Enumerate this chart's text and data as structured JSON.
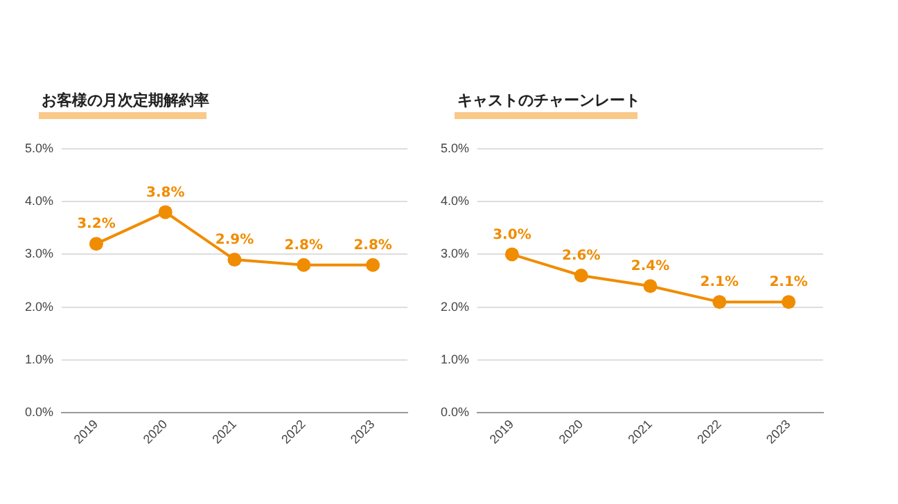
{
  "chart_data": [
    {
      "type": "line",
      "title": "お客様の月次定期解約率",
      "categories": [
        "2019",
        "2020",
        "2021",
        "2022",
        "2023"
      ],
      "series": [
        {
          "color": "#f08c00",
          "values": [
            3.2,
            3.8,
            2.9,
            2.8,
            2.8
          ],
          "value_labels": [
            "3.2%",
            "3.8%",
            "2.9%",
            "2.8%",
            "2.8%"
          ]
        }
      ],
      "ylim": [
        0,
        5
      ],
      "yticks": [
        {
          "value": 0,
          "label": "0.0%"
        },
        {
          "value": 1,
          "label": "1.0%"
        },
        {
          "value": 2,
          "label": "2.0%"
        },
        {
          "value": 3,
          "label": "3.0%"
        },
        {
          "value": 4,
          "label": "4.0%"
        },
        {
          "value": 5,
          "label": "5.0%"
        }
      ],
      "grid": "y",
      "marker": "circle",
      "line_style": "solid",
      "legend": false
    },
    {
      "type": "line",
      "title": "キャストのチャーンレート",
      "categories": [
        "2019",
        "2020",
        "2021",
        "2022",
        "2023"
      ],
      "series": [
        {
          "color": "#f08c00",
          "values": [
            3.0,
            2.6,
            2.4,
            2.1,
            2.1
          ],
          "value_labels": [
            "3.0%",
            "2.6%",
            "2.4%",
            "2.1%",
            "2.1%"
          ]
        }
      ],
      "ylim": [
        0,
        5
      ],
      "yticks": [
        {
          "value": 0,
          "label": "0.0%"
        },
        {
          "value": 1,
          "label": "1.0%"
        },
        {
          "value": 2,
          "label": "2.0%"
        },
        {
          "value": 3,
          "label": "3.0%"
        },
        {
          "value": 4,
          "label": "4.0%"
        },
        {
          "value": 5,
          "label": "5.0%"
        }
      ],
      "grid": "y",
      "marker": "circle",
      "line_style": "solid",
      "legend": false
    }
  ]
}
